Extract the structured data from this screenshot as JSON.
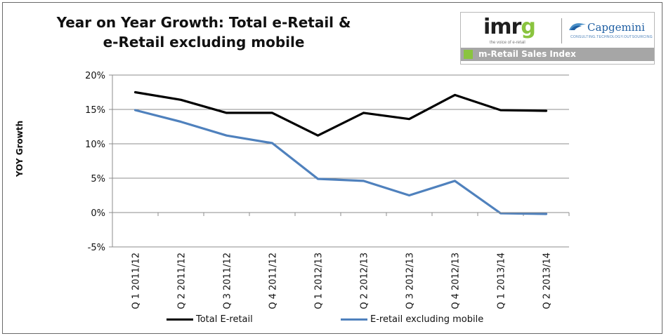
{
  "chart_data": {
    "type": "line",
    "title_line1": "Year on Year Growth: Total e-Retail &",
    "title_line2": "e-Retail excluding mobile",
    "xlabel": "",
    "ylabel": "YOY Growth",
    "ylim": [
      -5,
      20
    ],
    "yticks": [
      20,
      15,
      10,
      5,
      0,
      -5
    ],
    "ytick_labels": [
      "20%",
      "15%",
      "10%",
      "5%",
      "0%",
      "-5%"
    ],
    "grid": true,
    "categories": [
      "Q 1 2011/12",
      "Q 2 2011/12",
      "Q 3 2011/12",
      "Q 4 2011/12",
      "Q 1 2012/13",
      "Q 2 2012/13",
      "Q 3 2012/13",
      "Q 4 2012/13",
      "Q 1 2013/14",
      "Q 2 2013/14"
    ],
    "series": [
      {
        "name": "Total E-retail",
        "color": "#000000",
        "values": [
          17.5,
          16.4,
          14.5,
          14.5,
          11.2,
          14.5,
          13.6,
          17.1,
          14.9,
          14.8
        ]
      },
      {
        "name": "E-retail excluding mobile",
        "color": "#4f81bd",
        "values": [
          14.9,
          13.2,
          11.2,
          10.1,
          4.9,
          4.6,
          2.5,
          4.6,
          -0.1,
          -0.2
        ]
      }
    ],
    "legend_position": "bottom"
  },
  "logo": {
    "imrg_main": "imr",
    "imrg_last": "g",
    "imrg_tagline": "the voice of e-retail",
    "capgemini_name": "Capgemini",
    "capgemini_tagline": "CONSULTING.TECHNOLOGY.OUTSOURCING",
    "banner_text": "m-Retail Sales Index"
  },
  "colors": {
    "accent_green": "#8ac43f",
    "banner_gray": "#a6a6a6",
    "capgemini_blue": "#1f5fa3"
  }
}
